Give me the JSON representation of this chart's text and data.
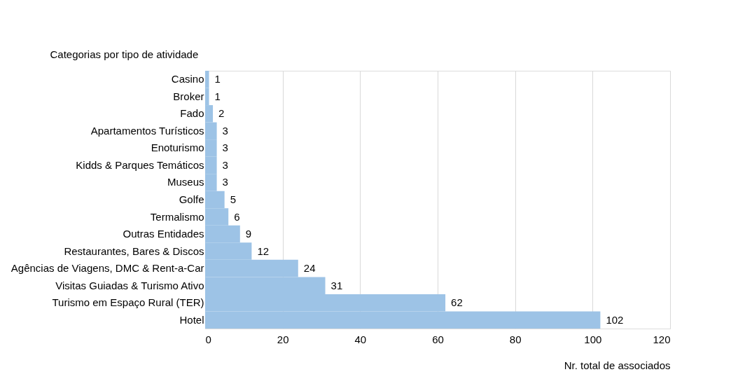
{
  "chart_data": {
    "type": "bar",
    "orientation": "horizontal",
    "ylabel": "Categorias por tipo de atividade",
    "xlabel": "Nr. total de associados",
    "categories": [
      "Casino",
      "Broker",
      "Fado",
      "Apartamentos Turísticos",
      "Enoturismo",
      "Kidds & Parques Temáticos",
      "Museus",
      "Golfe",
      "Termalismo",
      "Outras Entidades",
      "Restaurantes, Bares & Discos",
      "Agências de Viagens, DMC & Rent-a-Car",
      "Visitas Guiadas & Turismo Ativo",
      "Turismo em Espaço Rural (TER)",
      "Hotel"
    ],
    "values": [
      1,
      1,
      2,
      3,
      3,
      3,
      3,
      5,
      6,
      9,
      12,
      24,
      31,
      62,
      102
    ],
    "color": "#9dc3e6",
    "xlim": [
      0,
      120
    ],
    "xticks": [
      0,
      20,
      40,
      60,
      80,
      100,
      120
    ],
    "grid": "x",
    "data_labels": true
  }
}
